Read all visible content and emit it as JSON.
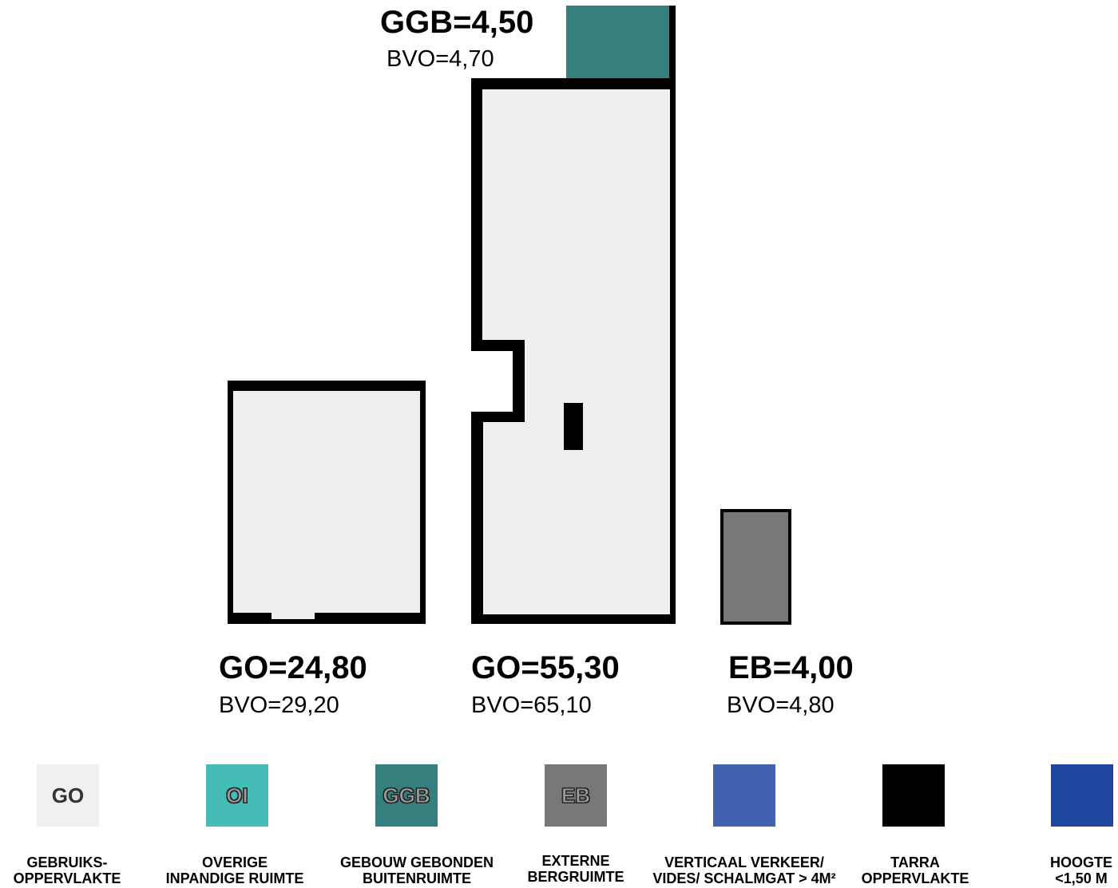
{
  "areas": {
    "ggb": {
      "main": "GGB=4,50",
      "sub": "BVO=4,70"
    },
    "go_left": {
      "main": "GO=24,80",
      "sub": "BVO=29,20"
    },
    "go_mid": {
      "main": "GO=55,30",
      "sub": "BVO=65,10"
    },
    "eb": {
      "main": "EB=4,00",
      "sub": "BVO=4,80"
    }
  },
  "legend": [
    {
      "code": "GO",
      "line1": "GEBRUIKS-",
      "line2": "OPPERVLAKTE",
      "color": "#f0f0f0"
    },
    {
      "code": "OI",
      "line1": "OVERIGE",
      "line2": "INPANDIGE RUIMTE",
      "color": "#45bcb5"
    },
    {
      "code": "GGB",
      "line1": "GEBOUW GEBONDEN",
      "line2": "BUITENRUIMTE",
      "color": "#367f7f"
    },
    {
      "code": "EB",
      "line1": "EXTERNE",
      "line2": "BERGRUIMTE",
      "color": "#777777"
    },
    {
      "code": "",
      "line1": "VERTICAAL VERKEER/",
      "line2": "VIDES/ SCHALMGAT > 4M²",
      "color": "#4261b0"
    },
    {
      "code": "",
      "line1": "TARRA",
      "line2": "OPPERVLAKTE",
      "color": "#000000"
    },
    {
      "code": "",
      "line1": "HOOGTE",
      "line2": "<1,50 M",
      "color": "#1f45a0"
    }
  ]
}
